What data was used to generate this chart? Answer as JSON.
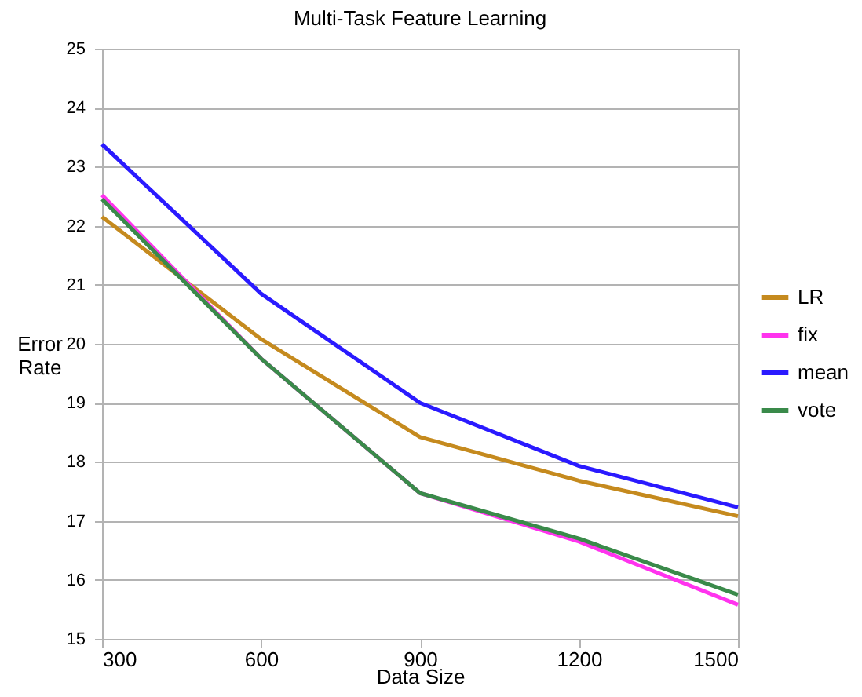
{
  "chart_data": {
    "type": "line",
    "title": "Multi-Task Feature Learning",
    "xlabel": "Data Size",
    "ylabel": "Error Rate",
    "x": [
      300,
      600,
      900,
      1200,
      1500
    ],
    "series": [
      {
        "name": "LR",
        "color": "#c58a1e",
        "values": [
          22.15,
          20.08,
          18.42,
          17.68,
          17.08
        ]
      },
      {
        "name": "fix",
        "color": "#ff33ee",
        "values": [
          22.52,
          19.75,
          17.47,
          16.65,
          15.58
        ]
      },
      {
        "name": "mean",
        "color": "#2a1aff",
        "values": [
          23.38,
          20.85,
          19.0,
          17.93,
          17.23
        ]
      },
      {
        "name": "vote",
        "color": "#3a8a4a",
        "values": [
          22.45,
          19.75,
          17.47,
          16.7,
          15.75
        ]
      }
    ],
    "xlim": [
      300,
      1500
    ],
    "xticks": [
      300,
      600,
      900,
      1200,
      1500
    ],
    "ylim": [
      15,
      25
    ],
    "yticks": [
      15,
      16,
      17,
      18,
      19,
      20,
      21,
      22,
      23,
      24,
      25
    ],
    "grid": "y",
    "legend": "right",
    "marker": "none",
    "line_style": "solid"
  }
}
